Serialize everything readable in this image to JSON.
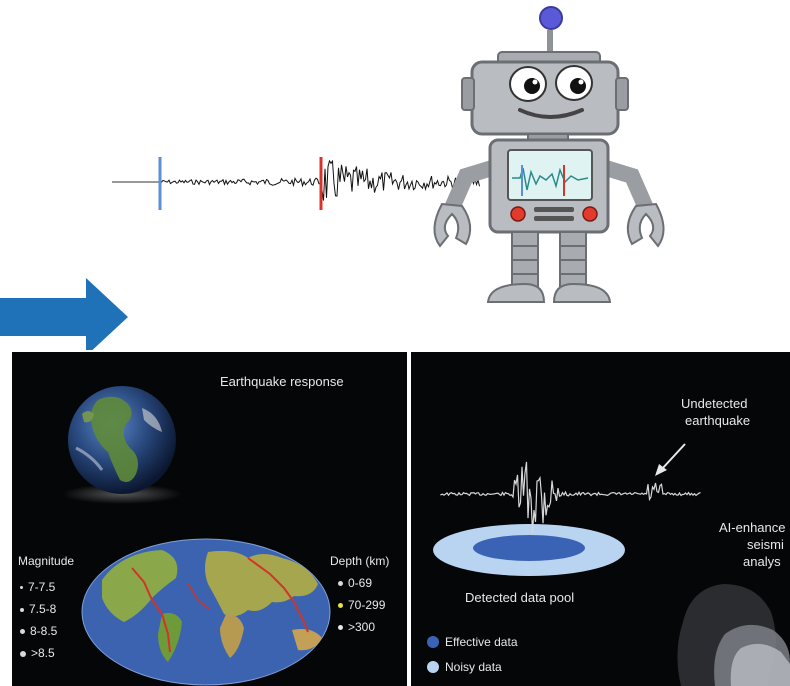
{
  "colors": {
    "arrow": "#1f72b8",
    "pick_p": "#5b8fd6",
    "pick_s": "#d9342b",
    "robot_body": "#b9bcc0",
    "robot_dark": "#8f9398",
    "robot_screen": "#dff3f3",
    "panel_bg": "#050608",
    "pool_outer": "#b9d4f0",
    "pool_inner": "#3b63b5",
    "depth_shallow": "#d9d9d9",
    "depth_mid": "#e8e24a",
    "depth_deep": "#e8e8e8"
  },
  "icons": [
    "robot-icon",
    "seismogram-icon",
    "arrow-right-icon",
    "earth-globe-icon",
    "world-map-icon",
    "human-head-icon"
  ],
  "left_panel": {
    "title": "Earthquake response",
    "magnitude": {
      "label": "Magnitude",
      "items": [
        "7-7.5",
        "7.5-8",
        "8-8.5",
        ">8.5"
      ]
    },
    "depth": {
      "label": "Depth (km)",
      "items": [
        "0-69",
        "70-299",
        ">300"
      ]
    }
  },
  "right_panel": {
    "undetected_label_1": "Undetected",
    "undetected_label_2": "earthquake",
    "ai_label_1": "AI-enhance",
    "ai_label_2": "seismi",
    "ai_label_3": "analys",
    "pool_label": "Detected data pool",
    "legend": [
      "Effective data",
      "Noisy data"
    ]
  }
}
